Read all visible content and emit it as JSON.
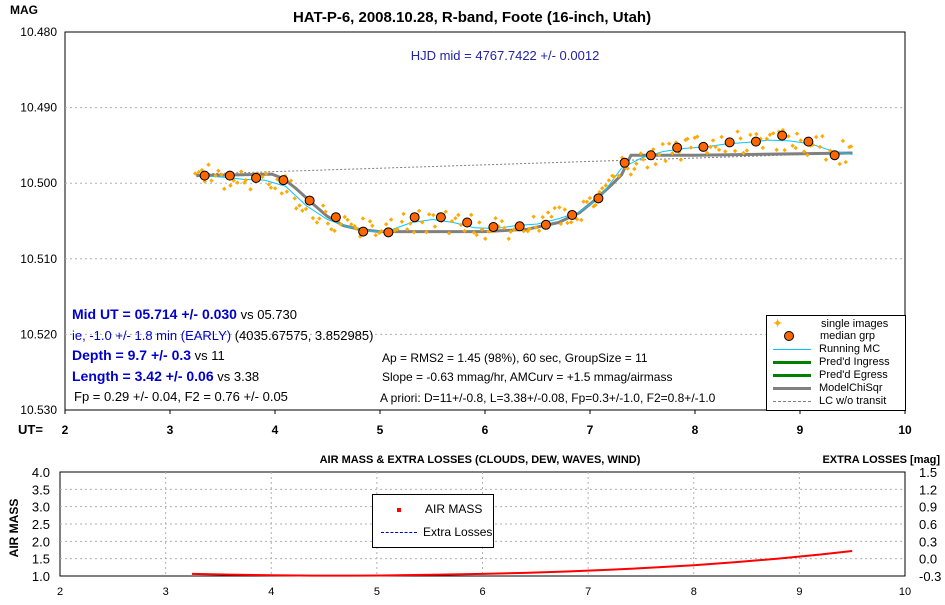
{
  "chart_data": [
    {
      "type": "scatter",
      "title": "HAT-P-6, 2008.10.28, R-band, Foote (16-inch, Utah)",
      "ylabel": "MAG",
      "xlabel": "UT=",
      "xlim": [
        2,
        10
      ],
      "ylim": [
        10.48,
        10.53
      ],
      "y_inverted": true,
      "x_ticks": [
        2,
        3,
        4,
        5,
        6,
        7,
        8,
        9,
        10
      ],
      "y_ticks": [
        10.48,
        10.49,
        10.5,
        10.51,
        10.52,
        10.53
      ],
      "y_tick_labels": [
        "10.480",
        "10.490",
        "10.500",
        "10.510",
        "10.520",
        "10.530"
      ],
      "annotation_hjd": "HJD mid = 4767.7422 +/- 0.0012",
      "annotations": {
        "mid_ut_bold": "Mid UT = 05.714 +/- 0.030",
        "mid_ut_vs": " vs 05.730",
        "ie_text": " ie, -1.0 +/- 1.8 min (EARLY)",
        "ie_coords": " (4035.67575, 3.852985)",
        "depth_bold": "Depth = 9.7 +/- 0.3",
        "depth_vs": " vs 11",
        "length_bold": "Length = 3.42 +/- 0.06",
        "length_vs": " vs 3.38",
        "fp_line": "Fp = 0.29 +/- 0.04, F2 = 0.76 +/- 0.05",
        "ap_line": "Ap = RMS2 = 1.45 (98%), 60 sec, GroupSize = 11",
        "slope_line": "Slope = -0.63 mmag/hr, AMCurv = +1.5 mmag/airmass",
        "apriori_line": "A priori:  D=11+/-0.8, L=3.38+/-0.08, Fp=0.3+/-1.0, F2=0.8+/-1.0"
      },
      "legend": [
        "single images",
        "median grp",
        "Running MC",
        "Pred'd Ingress",
        "Pred'd Egress",
        "ModelChiSqr",
        "LC w/o transit"
      ],
      "colors": {
        "single": "#ffaa00",
        "median_fill": "#ff6600",
        "running": "#00c8ff",
        "ingress": "#008000",
        "model": "#808080",
        "baseline": "#808080",
        "title": "#000000",
        "annotation_blue": "#0000cc"
      },
      "series": [
        {
          "name": "median grp",
          "x": [
            3.33,
            3.57,
            3.82,
            4.08,
            4.33,
            4.58,
            4.84,
            5.08,
            5.33,
            5.58,
            5.83,
            6.08,
            6.33,
            6.58,
            6.83,
            7.08,
            7.33,
            7.58,
            7.83,
            8.08,
            8.33,
            8.58,
            8.83,
            9.08,
            9.33
          ],
          "y": [
            10.499,
            10.499,
            10.4993,
            10.4996,
            10.5023,
            10.5045,
            10.5064,
            10.5065,
            10.5045,
            10.5045,
            10.5052,
            10.5058,
            10.5057,
            10.5055,
            10.5042,
            10.502,
            10.4973,
            10.4963,
            10.4953,
            10.4952,
            10.4946,
            10.4945,
            10.4937,
            10.4945,
            10.4963
          ]
        },
        {
          "name": "ModelChiSqr",
          "x": [
            3.25,
            3.97,
            4.08,
            4.2,
            4.35,
            4.5,
            4.65,
            4.8,
            5.0,
            5.5,
            6.0,
            6.4,
            6.7,
            6.9,
            7.05,
            7.2,
            7.3,
            7.39,
            7.6,
            8.0,
            8.5,
            9.0,
            9.5
          ],
          "y": [
            10.499,
            10.4988,
            10.4994,
            10.5007,
            10.5026,
            10.5044,
            10.5056,
            10.5061,
            10.5064,
            10.5064,
            10.5064,
            10.5061,
            10.5052,
            10.5039,
            10.5022,
            10.5003,
            10.4989,
            10.4963,
            10.4963,
            10.4963,
            10.4962,
            10.4961,
            10.496
          ]
        },
        {
          "name": "LC w/o transit",
          "x": [
            3.25,
            9.5
          ],
          "y": [
            10.4988,
            10.496
          ]
        },
        {
          "name": "Running MC",
          "x": [
            3.3,
            3.5,
            3.7,
            3.9,
            4.1,
            4.3,
            4.5,
            4.7,
            4.9,
            5.1,
            5.3,
            5.5,
            5.7,
            5.9,
            6.1,
            6.3,
            6.5,
            6.7,
            6.9,
            7.1,
            7.3,
            7.5,
            7.7,
            7.9,
            8.1,
            8.3,
            8.5,
            8.7,
            8.9,
            9.1,
            9.3,
            9.5
          ],
          "y": [
            10.499,
            10.4992,
            10.4995,
            10.4996,
            10.5004,
            10.503,
            10.5048,
            10.5058,
            10.5064,
            10.5062,
            10.5052,
            10.5048,
            10.5052,
            10.5059,
            10.506,
            10.5056,
            10.5054,
            10.5047,
            10.5038,
            10.5018,
            10.498,
            10.4966,
            10.4958,
            10.4954,
            10.4952,
            10.4948,
            10.4946,
            10.4943,
            10.4944,
            10.4948,
            10.4957,
            10.4962
          ]
        }
      ]
    },
    {
      "type": "line",
      "title": "AIR MASS & EXTRA LOSSES (CLOUDS, DEW, WAVES, WIND)",
      "ylabel": "AIR MASS",
      "y2label": "EXTRA LOSSES [mag]",
      "xlim": [
        2,
        10
      ],
      "ylim": [
        1.0,
        4.0
      ],
      "y2lim": [
        -0.3,
        1.5
      ],
      "x_ticks": [
        2,
        3,
        4,
        5,
        6,
        7,
        8,
        9,
        10
      ],
      "y_ticks": [
        1.0,
        1.5,
        2.0,
        2.5,
        3.0,
        3.5,
        4.0
      ],
      "y_tick_labels": [
        "1.0",
        "1.5",
        "2.0",
        "2.5",
        "3.0",
        "3.5",
        "4.0"
      ],
      "y2_tick_labels": [
        "-0.3",
        "0.0",
        "0.3",
        "0.6",
        "0.9",
        "1.2",
        "1.5"
      ],
      "legend": [
        "AIR MASS",
        "Extra Losses"
      ],
      "series": [
        {
          "name": "AIR MASS",
          "x": [
            3.25,
            3.6,
            4.0,
            4.4,
            4.8,
            5.2,
            5.6,
            6.0,
            6.4,
            6.8,
            7.2,
            7.6,
            8.0,
            8.4,
            8.8,
            9.2,
            9.5
          ],
          "y": [
            1.06,
            1.04,
            1.02,
            1.01,
            1.01,
            1.02,
            1.04,
            1.06,
            1.09,
            1.13,
            1.18,
            1.24,
            1.31,
            1.4,
            1.5,
            1.62,
            1.72
          ]
        }
      ]
    }
  ]
}
